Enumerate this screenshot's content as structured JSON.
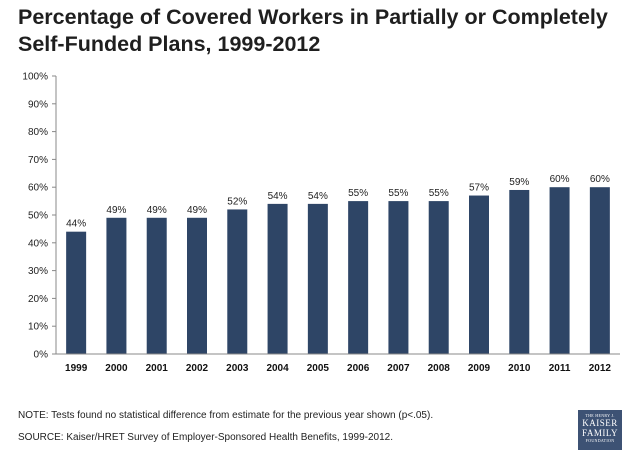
{
  "title": "Percentage of Covered Workers in Partially or Completely Self-Funded Plans, 1999-2012",
  "notes": {
    "note": "NOTE: Tests found no statistical difference from estimate for the previous year shown (p<.05).",
    "source": "SOURCE: Kaiser/HRET Survey of Employer-Sponsored Health Benefits, 1999-2012."
  },
  "logo": {
    "line0": "THE HENRY J.",
    "line1": "KAISER",
    "line2": "FAMILY",
    "line3": "FOUNDATION"
  },
  "chart_data": {
    "type": "bar",
    "title": "Percentage of Covered Workers in Partially or Completely Self-Funded Plans, 1999-2012",
    "xlabel": "",
    "ylabel": "",
    "categories": [
      "1999",
      "2000",
      "2001",
      "2002",
      "2003",
      "2004",
      "2005",
      "2006",
      "2007",
      "2008",
      "2009",
      "2010",
      "2011",
      "2012"
    ],
    "values": [
      44,
      49,
      49,
      49,
      52,
      54,
      54,
      55,
      55,
      55,
      57,
      59,
      60,
      60
    ],
    "data_labels": [
      "44%",
      "49%",
      "49%",
      "49%",
      "52%",
      "54%",
      "54%",
      "55%",
      "55%",
      "55%",
      "57%",
      "59%",
      "60%",
      "60%"
    ],
    "ylim": [
      0,
      100
    ],
    "yticks": [
      0,
      10,
      20,
      30,
      40,
      50,
      60,
      70,
      80,
      90,
      100
    ],
    "ytick_labels": [
      "0%",
      "10%",
      "20%",
      "30%",
      "40%",
      "50%",
      "60%",
      "70%",
      "80%",
      "90%",
      "100%"
    ],
    "bar_color": "#2e4566",
    "grid": false,
    "legend": "none"
  }
}
